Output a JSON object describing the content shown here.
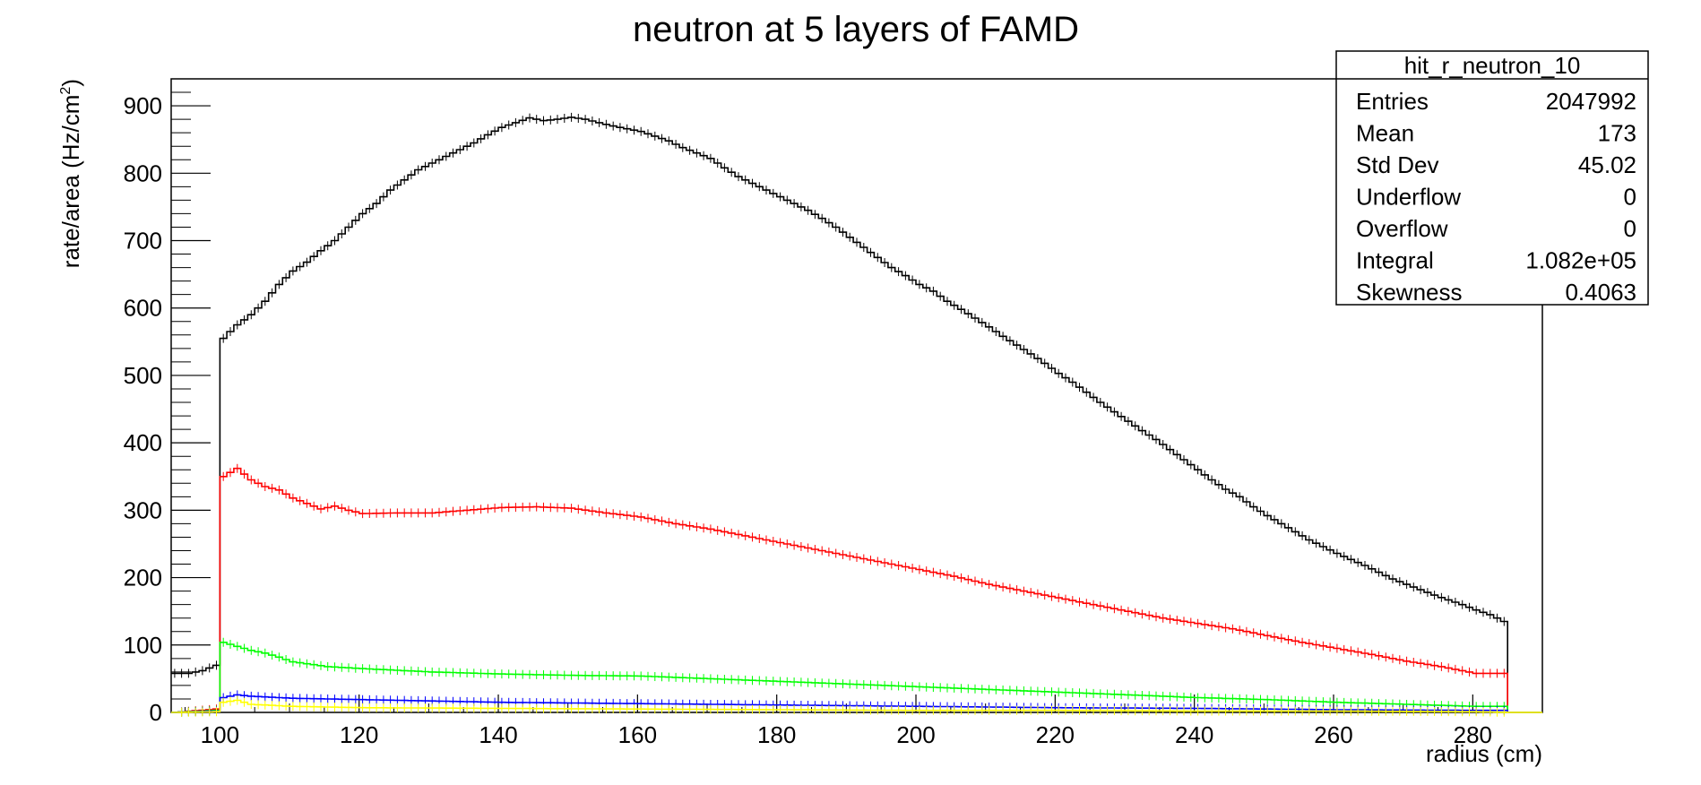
{
  "chart_data": {
    "type": "histogram",
    "title": "neutron at 5 layers of FAMD",
    "xlabel": "radius (cm)",
    "ylabel_main": "rate/area (Hz/cm",
    "ylabel_sup": "2",
    "ylabel_tail": ")",
    "xlim": [
      93,
      290
    ],
    "ylim": [
      0,
      940
    ],
    "xticks": [
      100,
      120,
      140,
      160,
      180,
      200,
      220,
      240,
      260,
      280
    ],
    "yticks": [
      0,
      100,
      200,
      300,
      400,
      500,
      600,
      700,
      800,
      900
    ],
    "bin_width": 1,
    "grid": false,
    "series": [
      {
        "color": "#000000",
        "x": [
          93,
          95,
          97,
          99,
          100,
          102,
          104,
          106,
          108,
          110,
          112,
          114,
          116,
          118,
          120,
          122,
          124,
          126,
          128,
          130,
          132,
          134,
          136,
          138,
          140,
          142,
          144,
          146,
          148,
          150,
          152,
          154,
          156,
          158,
          160,
          162,
          164,
          166,
          168,
          170,
          172,
          174,
          176,
          178,
          180,
          182,
          184,
          186,
          188,
          190,
          192,
          194,
          196,
          198,
          200,
          202,
          204,
          206,
          208,
          210,
          212,
          214,
          216,
          218,
          220,
          222,
          224,
          226,
          228,
          230,
          232,
          234,
          236,
          238,
          240,
          242,
          244,
          246,
          248,
          250,
          252,
          254,
          256,
          258,
          260,
          262,
          264,
          266,
          268,
          270,
          272,
          274,
          276,
          278,
          280,
          282,
          284,
          285
        ],
        "y": [
          58,
          58,
          62,
          70,
          555,
          575,
          590,
          610,
          635,
          655,
          668,
          685,
          700,
          720,
          740,
          755,
          775,
          790,
          805,
          815,
          825,
          835,
          845,
          857,
          868,
          875,
          882,
          878,
          880,
          883,
          880,
          875,
          870,
          866,
          862,
          855,
          848,
          838,
          830,
          822,
          808,
          795,
          785,
          775,
          765,
          755,
          745,
          733,
          720,
          705,
          690,
          675,
          660,
          648,
          635,
          625,
          610,
          598,
          585,
          572,
          558,
          545,
          532,
          518,
          503,
          490,
          475,
          460,
          446,
          432,
          418,
          405,
          390,
          375,
          360,
          345,
          331,
          320,
          305,
          292,
          280,
          268,
          256,
          246,
          236,
          227,
          218,
          208,
          198,
          190,
          182,
          174,
          167,
          160,
          152,
          145,
          135,
          0
        ]
      },
      {
        "color": "#ff0000",
        "x": [
          93,
          99,
          100,
          102,
          104,
          106,
          108,
          110,
          112,
          114,
          116,
          118,
          120,
          125,
          130,
          135,
          140,
          145,
          150,
          155,
          160,
          165,
          170,
          175,
          180,
          185,
          190,
          195,
          200,
          205,
          210,
          215,
          220,
          225,
          230,
          235,
          240,
          245,
          250,
          255,
          260,
          265,
          270,
          275,
          280,
          285
        ],
        "y": [
          0,
          5,
          350,
          362,
          345,
          335,
          330,
          318,
          310,
          302,
          306,
          300,
          295,
          296,
          296,
          300,
          304,
          305,
          303,
          296,
          290,
          280,
          272,
          262,
          252,
          242,
          232,
          222,
          212,
          202,
          190,
          180,
          170,
          160,
          150,
          140,
          132,
          124,
          114,
          104,
          95,
          86,
          76,
          68,
          58,
          0
        ]
      },
      {
        "color": "#00ff00",
        "x": [
          93,
          99,
          100,
          102,
          104,
          106,
          108,
          110,
          115,
          120,
          130,
          140,
          150,
          160,
          170,
          180,
          190,
          200,
          210,
          220,
          230,
          240,
          250,
          260,
          270,
          280,
          285
        ],
        "y": [
          0,
          3,
          104,
          98,
          92,
          88,
          82,
          75,
          68,
          65,
          60,
          57,
          55,
          54,
          50,
          46,
          42,
          38,
          34,
          30,
          26,
          22,
          19,
          15,
          12,
          9,
          0
        ]
      },
      {
        "color": "#0000ff",
        "x": [
          93,
          99,
          100,
          102,
          104,
          110,
          120,
          130,
          140,
          150,
          160,
          170,
          180,
          200,
          220,
          240,
          260,
          280,
          285
        ],
        "y": [
          0,
          2,
          22,
          26,
          24,
          21,
          19,
          17,
          15,
          14,
          13,
          12,
          11,
          9,
          7,
          6,
          4,
          3,
          0
        ]
      },
      {
        "color": "#ffff00",
        "x": [
          93,
          99,
          100,
          102,
          104,
          110,
          120,
          140,
          160,
          180,
          200,
          220,
          240,
          260,
          280,
          285,
          290
        ],
        "y": [
          0,
          1,
          15,
          18,
          12,
          9,
          7,
          6,
          5,
          4,
          3,
          3,
          2,
          2,
          1,
          0,
          0
        ]
      }
    ]
  },
  "stats": {
    "title": "hit_r_neutron_10",
    "rows": [
      {
        "label": "Entries",
        "value": "2047992"
      },
      {
        "label": "Mean",
        "value": "173"
      },
      {
        "label": "Std Dev",
        "value": "45.02"
      },
      {
        "label": "Underflow",
        "value": "0"
      },
      {
        "label": "Overflow",
        "value": "0"
      },
      {
        "label": "Integral",
        "value": "1.082e+05"
      },
      {
        "label": "Skewness",
        "value": "0.4063"
      }
    ]
  }
}
